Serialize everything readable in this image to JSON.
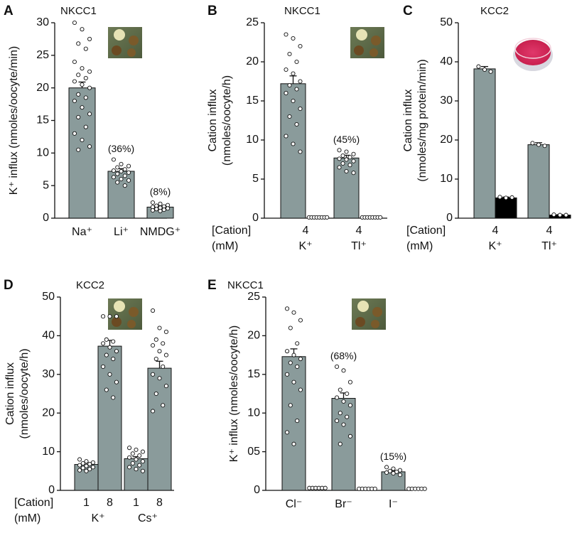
{
  "chart_data": [
    {
      "type": "bar",
      "panel": "A",
      "title": "NKCC1",
      "ylabel": [
        "K⁺ influx (nmoles/oocyte/min)"
      ],
      "ylim": [
        0,
        30
      ],
      "yticks": [
        0,
        5,
        10,
        15,
        20,
        25,
        30
      ],
      "categories": [
        "Na⁺",
        "Li⁺",
        "NMDG⁺"
      ],
      "series": [
        {
          "color": "#8a9b9b",
          "values": [
            20,
            7.2,
            1.7
          ],
          "errors": [
            0.9,
            0.4,
            0.15
          ],
          "points": [
            [
              30,
              29,
              27.5,
              26.8,
              26,
              24,
              23,
              22.5,
              22,
              21.5,
              21,
              20.5,
              20,
              19,
              18.5,
              18,
              17,
              16,
              15.5,
              14,
              13,
              12,
              11,
              10.5
            ],
            [
              9,
              8.3,
              8,
              7.8,
              7.5,
              7.3,
              7.2,
              7,
              6.8,
              6.5,
              6.3,
              6,
              5.8,
              5.5,
              5
            ],
            [
              2.4,
              2.2,
              2,
              1.9,
              1.8,
              1.7,
              1.6,
              1.5,
              1.4,
              1.3,
              1.2,
              1.1
            ]
          ]
        }
      ],
      "annotations": [
        {
          "category": "Li⁺",
          "text": "(36%)"
        },
        {
          "category": "NMDG⁺",
          "text": "(8%)"
        }
      ]
    },
    {
      "type": "bar",
      "panel": "B",
      "title": "NKCC1",
      "ylabel": [
        "Cation influx",
        "(nmoles/oocyte/h)"
      ],
      "ylim": [
        0,
        25
      ],
      "yticks": [
        0,
        5,
        10,
        15,
        20,
        25
      ],
      "row_labels": [
        "[Cation]",
        "(mM)"
      ],
      "concentrations": [
        4,
        4
      ],
      "categories": [
        "K⁺",
        "Tl⁺"
      ],
      "series": [
        {
          "color": "#8a9b9b",
          "values": [
            17.2,
            7.7
          ],
          "errors": [
            1,
            0.35
          ],
          "points": [
            [
              23.5,
              23,
              22,
              21,
              20,
              19,
              18.5,
              17.5,
              17,
              16.5,
              16,
              15,
              14,
              13,
              12,
              10.5,
              9.5,
              8.5
            ],
            [
              8.7,
              8.5,
              8.2,
              8,
              7.8,
              7.6,
              7.5,
              7.3,
              7,
              6.8,
              6.5,
              6,
              5.8
            ]
          ]
        },
        {
          "color": null,
          "values": [
            0.1,
            0.1
          ],
          "errors": [
            0,
            0
          ],
          "points": [
            [
              0.1,
              0.1,
              0.1,
              0.1,
              0.1,
              0.1,
              0.1,
              0.1
            ],
            [
              0.1,
              0.1,
              0.1,
              0.1,
              0.1,
              0.1,
              0.1,
              0.1
            ]
          ]
        }
      ],
      "annotations": [
        {
          "category": "Tl⁺",
          "text": "(45%)"
        }
      ]
    },
    {
      "type": "bar",
      "panel": "C",
      "title": "KCC2",
      "ylabel": [
        "Cation influx",
        "(nmoles/mg protein/min)"
      ],
      "ylim": [
        0,
        50
      ],
      "yticks": [
        0,
        10,
        20,
        30,
        40,
        50
      ],
      "row_labels": [
        "[Cation]",
        "(mM)"
      ],
      "concentrations": [
        4,
        4
      ],
      "categories": [
        "K⁺",
        "Tl⁺"
      ],
      "series": [
        {
          "color": "#8a9b9b",
          "values": [
            38.2,
            18.8
          ],
          "errors": [
            0.6,
            0.5
          ],
          "points": [
            [
              38.8,
              38,
              37.5
            ],
            [
              19.2,
              18.8,
              18.5
            ]
          ]
        },
        {
          "color": "#000000",
          "values": [
            5.2,
            0.8
          ],
          "errors": [
            0.2,
            0.1
          ],
          "points": [
            [
              5.4,
              5.2,
              5.3
            ],
            [
              0.9,
              0.8,
              0.8
            ]
          ]
        }
      ],
      "annotations": []
    },
    {
      "type": "bar",
      "panel": "D",
      "title": "KCC2",
      "ylabel": [
        "Cation influx",
        "(nmoles/oocyte/h)"
      ],
      "ylim": [
        0,
        50
      ],
      "yticks": [
        0,
        10,
        20,
        30,
        40,
        50
      ],
      "row_labels": [
        "[Cation]",
        "(mM)"
      ],
      "categories": [
        "K⁺",
        "Cs⁺"
      ],
      "series": [
        {
          "label": 1,
          "color": "#8a9b9b",
          "values": [
            6.7,
            8.2
          ],
          "errors": [
            0.4,
            0.5
          ],
          "points": [
            [
              8,
              7.5,
              7.2,
              7,
              6.8,
              6.5,
              6.3,
              6,
              5.8,
              5.5,
              5.2,
              5
            ],
            [
              11,
              10.5,
              10,
              9.5,
              9,
              8.5,
              8,
              7.5,
              7,
              6.5,
              6,
              5.5,
              5
            ]
          ]
        },
        {
          "label": 8,
          "color": "#8a9b9b",
          "values": [
            37.3,
            31.6
          ],
          "errors": [
            1.5,
            1.8
          ],
          "points": [
            [
              45,
              45,
              45,
              39,
              38.5,
              38,
              37,
              36,
              35,
              34,
              32,
              30,
              28,
              26,
              24
            ],
            [
              46.5,
              42,
              41,
              39,
              38,
              37.5,
              36,
              35,
              34,
              32,
              30,
              29,
              27,
              25,
              22,
              20.5
            ]
          ]
        }
      ],
      "annotations": []
    },
    {
      "type": "bar",
      "panel": "E",
      "title": "NKCC1",
      "ylabel": [
        "K⁺ influx (nmoles/oocyte/h)"
      ],
      "ylim": [
        0,
        25
      ],
      "yticks": [
        0,
        {
          "value": 5,
          "label": "05"
        },
        10,
        15,
        20,
        25
      ],
      "categories": [
        "Cl⁻",
        "Br⁻",
        "I⁻"
      ],
      "series": [
        {
          "color": "#8a9b9b",
          "values": [
            17.3,
            11.9,
            2.4
          ],
          "errors": [
            1,
            0.7,
            0.15
          ],
          "points": [
            [
              23.5,
              23,
              22,
              21,
              19,
              18,
              17.5,
              17,
              16.5,
              16,
              15,
              14,
              13,
              11,
              9,
              7.5,
              6
            ],
            [
              16,
              15.5,
              14,
              13,
              12.5,
              12,
              11.5,
              11,
              10,
              9.5,
              9,
              8.5,
              7,
              6
            ],
            [
              3,
              2.8,
              2.6,
              2.5,
              2.4,
              2.3,
              2.2,
              2
            ]
          ]
        },
        {
          "color": null,
          "values": [
            0.3,
            0.2,
            0.2
          ],
          "errors": [
            0,
            0,
            0
          ],
          "points": [
            [
              0.3,
              0.3,
              0.3,
              0.3,
              0.3,
              0.3
            ],
            [
              0.2,
              0.2,
              0.2,
              0.2,
              0.2,
              0.2
            ],
            [
              0.2,
              0.2,
              0.2,
              0.2,
              0.2,
              0.2
            ]
          ]
        }
      ],
      "annotations": [
        {
          "category": "Br⁻",
          "text": "(68%)"
        },
        {
          "category": "I⁻",
          "text": "(15%)"
        }
      ]
    }
  ]
}
